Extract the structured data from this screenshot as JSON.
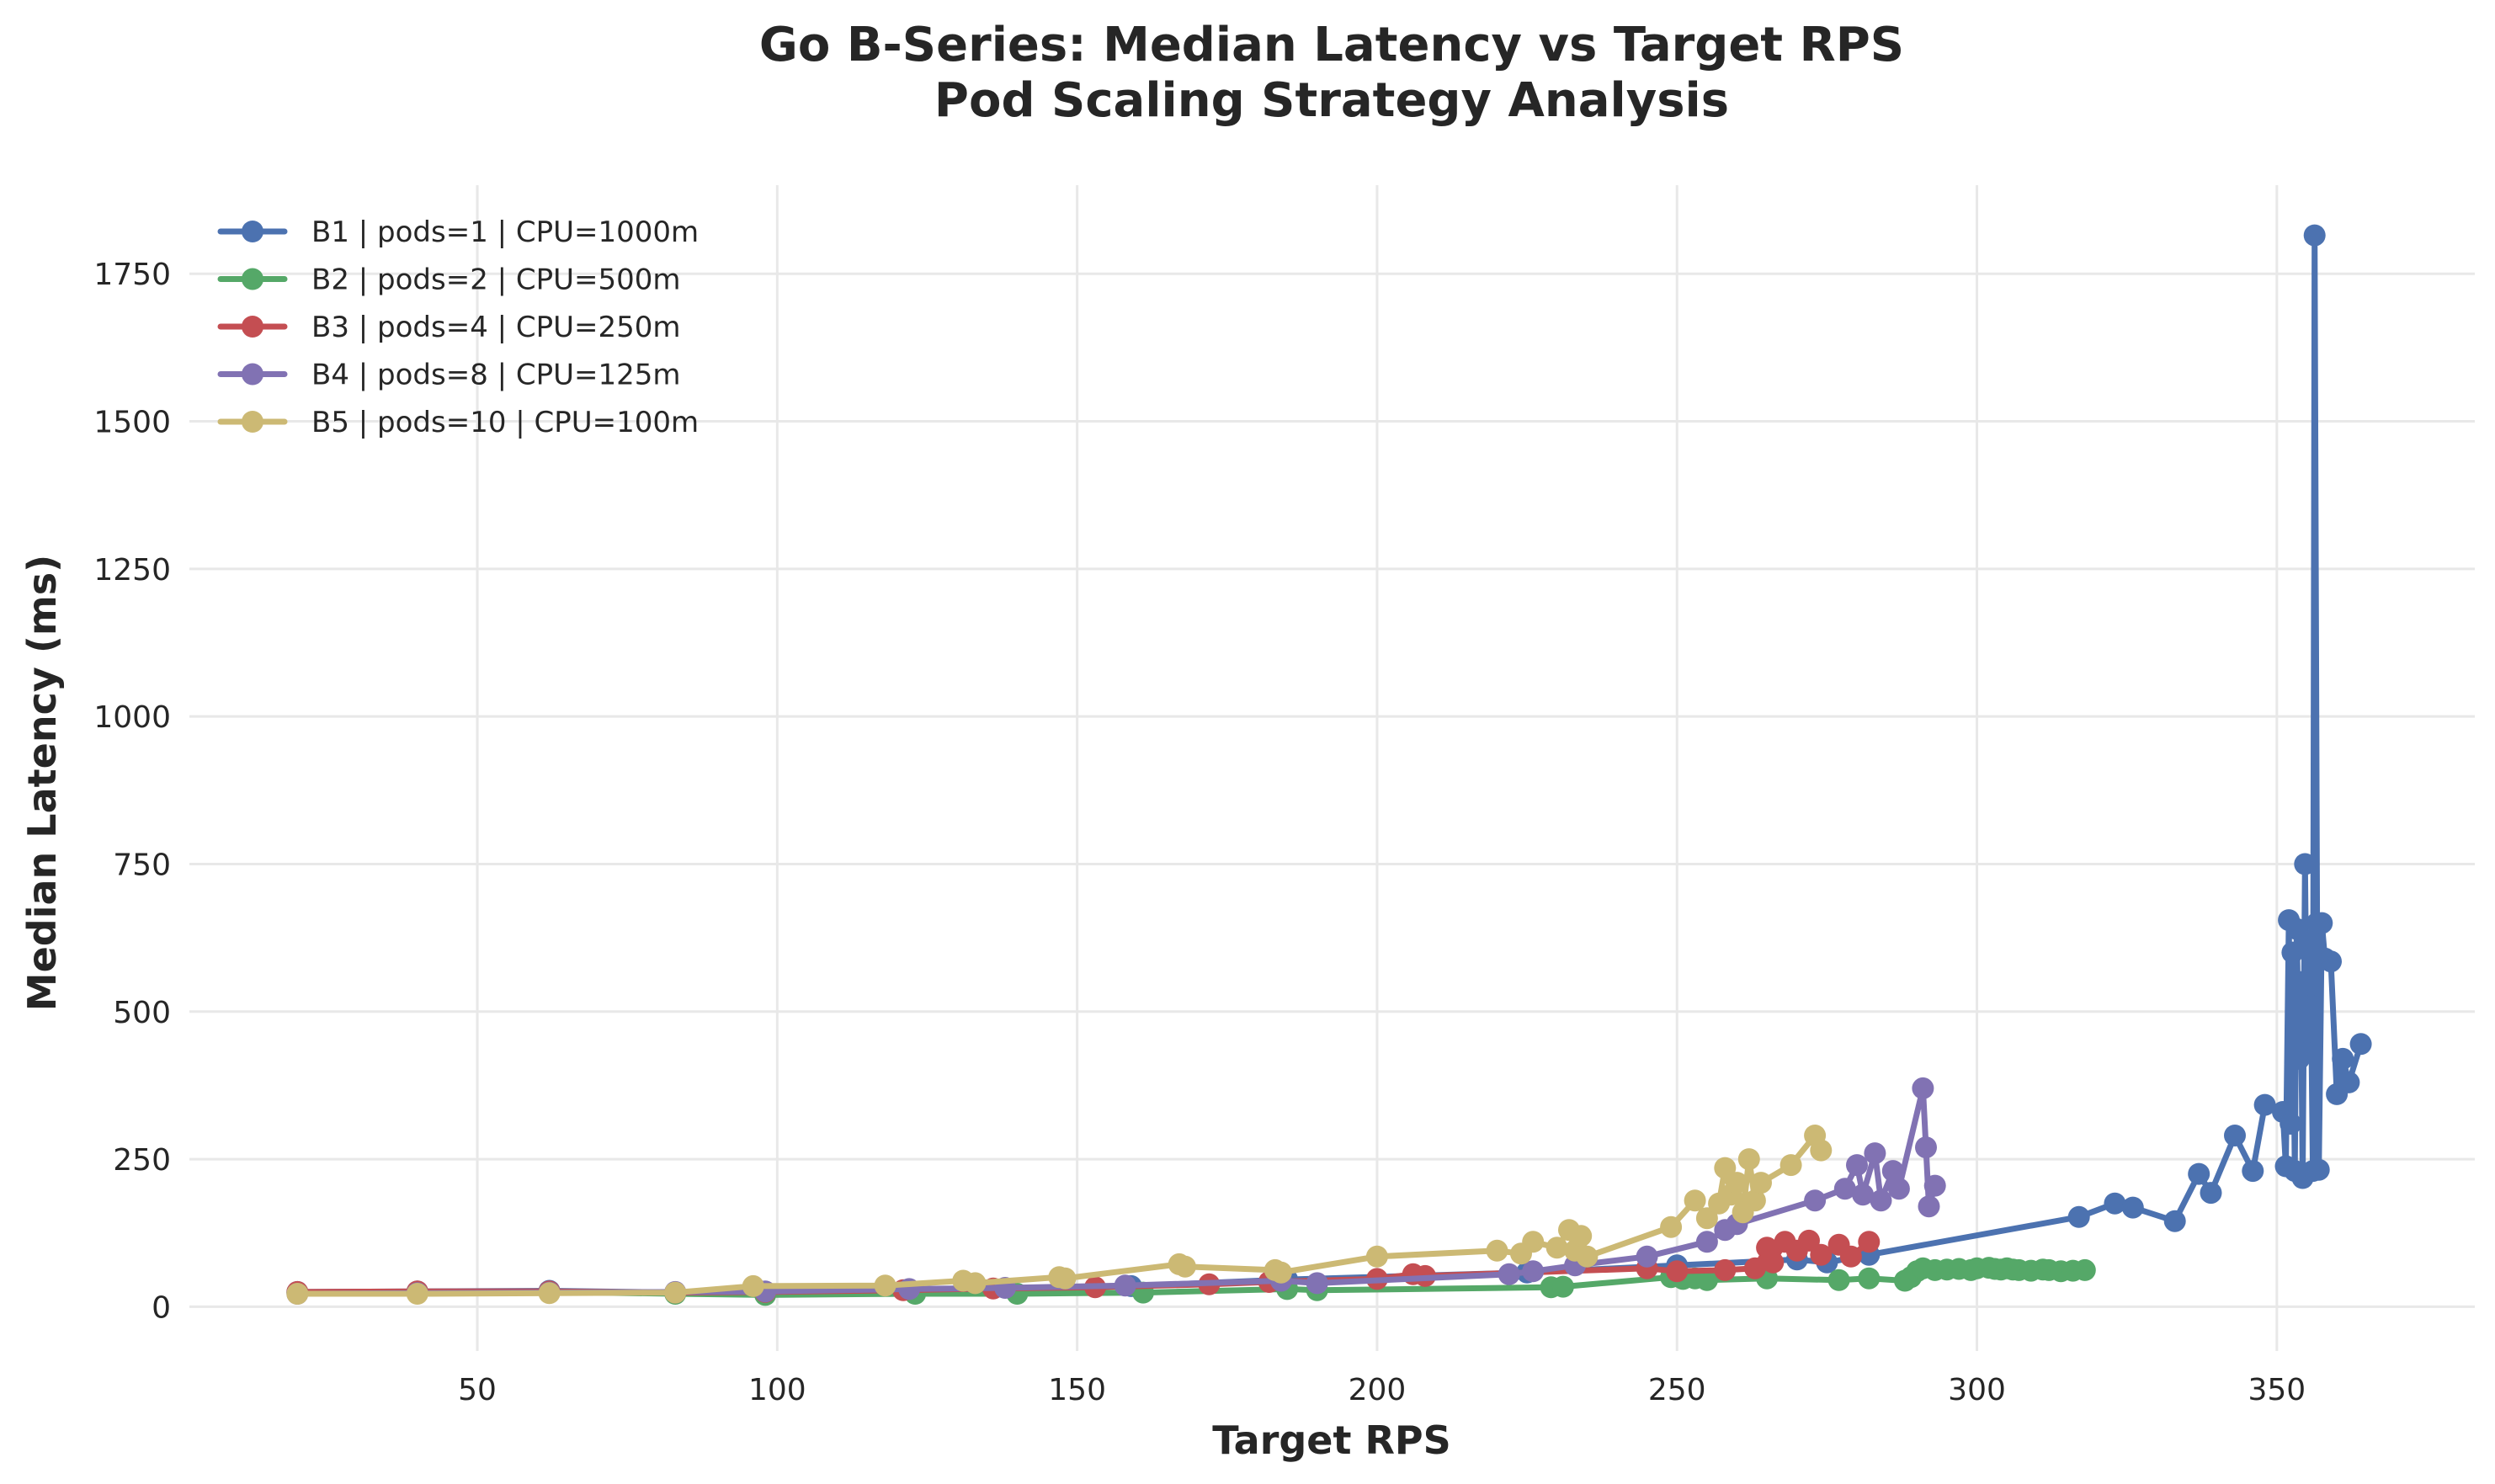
{
  "chart_data": {
    "type": "line",
    "title": "Go B-Series: Median Latency vs Target RPS",
    "subtitle": "Pod Scaling Strategy Analysis",
    "xlabel": "Target RPS",
    "ylabel": "Median Latency (ms)",
    "xlim": [
      2,
      383
    ],
    "ylim": [
      -75,
      1900
    ],
    "xticks": [
      50,
      100,
      150,
      200,
      250,
      300,
      350
    ],
    "yticks": [
      0,
      250,
      500,
      750,
      1000,
      1250,
      1500,
      1750
    ],
    "grid": true,
    "legend_position": "top-left",
    "series": [
      {
        "name": "B1 | pods=1 | CPU=1000m",
        "color": "#4c72b0",
        "x": [
          20,
          40,
          62,
          83,
          98,
          123,
          159,
          185,
          225,
          250,
          270,
          275,
          282,
          317,
          323,
          326,
          333,
          337,
          339,
          343,
          346,
          348,
          351,
          351.5,
          352,
          352.3,
          352.6,
          353,
          353.3,
          353.7,
          354,
          354.3,
          354.7,
          355,
          355.3,
          355.7,
          356,
          356.3,
          356.7,
          357,
          357.5,
          358,
          359,
          360,
          361,
          362,
          364
        ],
        "y": [
          25,
          26,
          27,
          24,
          22,
          24,
          35,
          46,
          58,
          70,
          80,
          75,
          88,
          152,
          175,
          168,
          145,
          225,
          193,
          290,
          230,
          342,
          330,
          238,
          655,
          310,
          600,
          230,
          640,
          420,
          550,
          218,
          750,
          430,
          620,
          510,
          230,
          1815,
          650,
          232,
          650,
          590,
          585,
          360,
          420,
          380,
          445
        ]
      },
      {
        "name": "B2 | pods=2 | CPU=500m",
        "color": "#55a868",
        "x": [
          20,
          40,
          62,
          83,
          98,
          123,
          140,
          161,
          185,
          190,
          229,
          231,
          249,
          251,
          253,
          255,
          265,
          277,
          282,
          288,
          289,
          290,
          291,
          293,
          295,
          297,
          299,
          300,
          302,
          303,
          304,
          305,
          306,
          307,
          309,
          311,
          312,
          314,
          316,
          318
        ],
        "y": [
          24,
          24,
          25,
          22,
          20,
          22,
          22,
          24,
          30,
          28,
          33,
          34,
          50,
          47,
          48,
          45,
          48,
          45,
          48,
          44,
          50,
          60,
          65,
          62,
          63,
          64,
          62,
          65,
          66,
          64,
          63,
          65,
          63,
          62,
          61,
          63,
          62,
          60,
          61,
          62
        ]
      },
      {
        "name": "B3 | pods=4 | CPU=250m",
        "color": "#c44e52",
        "x": [
          20,
          40,
          62,
          83,
          98,
          121,
          136,
          153,
          172,
          182,
          200,
          206,
          208,
          245,
          250,
          258,
          263,
          265,
          266,
          268,
          270,
          272,
          274,
          277,
          279,
          282
        ],
        "y": [
          25,
          26,
          26,
          24,
          25,
          28,
          31,
          33,
          38,
          42,
          47,
          55,
          52,
          65,
          60,
          62,
          65,
          100,
          75,
          110,
          95,
          112,
          88,
          105,
          85,
          110
        ]
      },
      {
        "name": "B4 | pods=8 | CPU=125m",
        "color": "#8172b3",
        "x": [
          20,
          40,
          62,
          83,
          98,
          122,
          138,
          158,
          184,
          190,
          222,
          226,
          233,
          245,
          255,
          258,
          260,
          273,
          278,
          280,
          281,
          283,
          284,
          286,
          287,
          291,
          291.5,
          292,
          293
        ],
        "y": [
          22,
          23,
          24,
          25,
          26,
          30,
          32,
          36,
          44,
          40,
          55,
          60,
          70,
          85,
          110,
          130,
          140,
          180,
          200,
          240,
          190,
          260,
          180,
          230,
          200,
          370,
          270,
          170,
          205
        ]
      },
      {
        "name": "B5 | pods=10 | CPU=100m",
        "color": "#ccb974",
        "x": [
          20,
          40,
          62,
          83,
          96,
          118,
          131,
          133,
          147,
          148,
          167,
          168,
          183,
          184,
          200,
          220,
          224,
          226,
          230,
          232,
          233,
          234,
          235,
          249,
          253,
          255,
          257,
          258,
          259,
          260,
          261,
          262,
          263,
          264,
          269,
          273,
          274
        ],
        "y": [
          22,
          22,
          23,
          24,
          35,
          36,
          44,
          40,
          50,
          48,
          72,
          68,
          62,
          58,
          85,
          95,
          90,
          110,
          100,
          130,
          95,
          120,
          85,
          135,
          180,
          150,
          175,
          235,
          190,
          210,
          160,
          250,
          180,
          210,
          240,
          290,
          265
        ]
      }
    ]
  }
}
